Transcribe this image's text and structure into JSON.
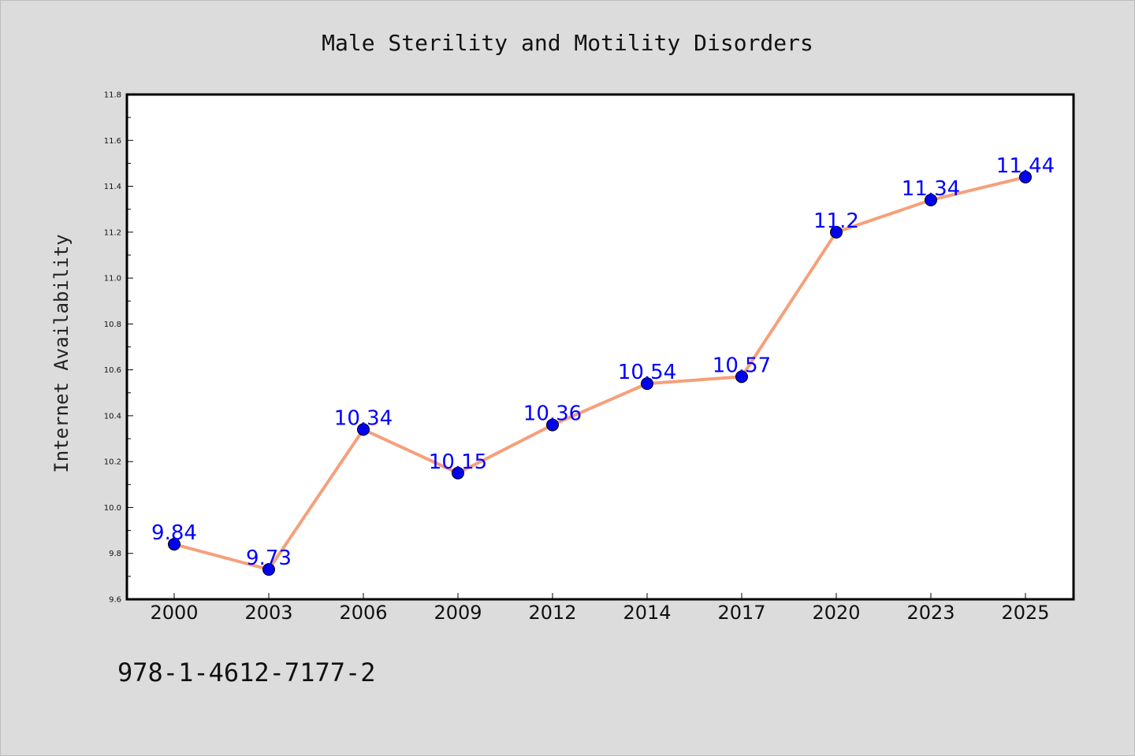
{
  "chart_data": {
    "type": "line",
    "title": "Male Sterility and Motility Disorders",
    "xlabel": "",
    "ylabel": "Internet Availability",
    "categories": [
      "2000",
      "2003",
      "2006",
      "2009",
      "2012",
      "2014",
      "2017",
      "2020",
      "2023",
      "2025"
    ],
    "series": [
      {
        "values": [
          9.84,
          9.73,
          10.34,
          10.15,
          10.36,
          10.54,
          10.57,
          11.2,
          11.34,
          11.44
        ],
        "data_labels": [
          "9.84",
          "9.73",
          "10.34",
          "10.15",
          "10.36",
          "10.54",
          "10.57",
          "11.2",
          "11.34",
          "11.44"
        ],
        "line_color": "#f5a07a",
        "marker_color": "#0000ee",
        "label_color": "#0000ff"
      }
    ],
    "ylim": [
      9.6,
      11.8
    ],
    "yticks": [
      "9.6",
      "9.8",
      "10.0",
      "10.2",
      "10.4",
      "10.6",
      "10.8",
      "11.0",
      "11.2",
      "11.4",
      "11.6",
      "11.8"
    ],
    "grid": false,
    "legend": "none"
  },
  "footnote": "978-1-4612-7177-2",
  "colors": {
    "background": "#dcdcdc",
    "plot_background": "#ffffff"
  }
}
